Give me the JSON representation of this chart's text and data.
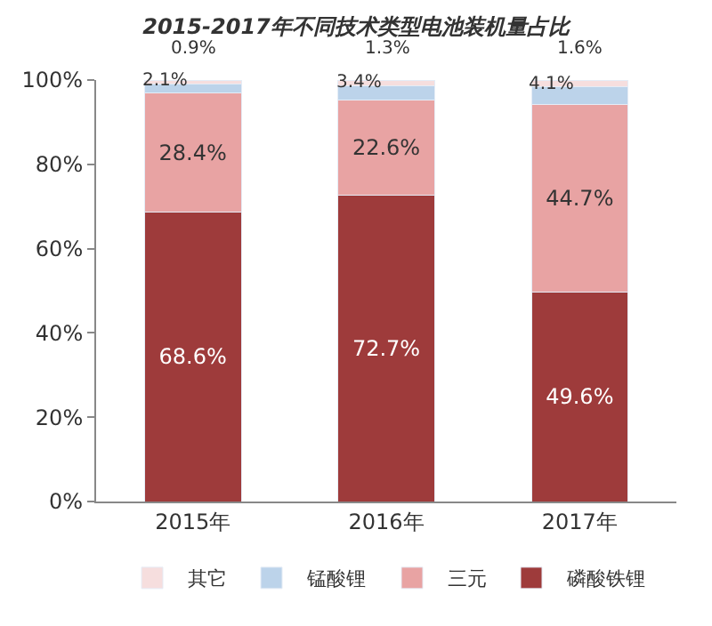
{
  "chart_data": {
    "type": "bar",
    "stacked": true,
    "title": "2015-2017年不同技术类型电池装机量占比",
    "categories": [
      "2015年",
      "2016年",
      "2017年"
    ],
    "series": [
      {
        "name": "磷酸铁锂",
        "color": "#9e3b3b",
        "values": [
          68.6,
          72.7,
          49.6
        ],
        "value_labels": [
          "68.6%",
          "72.7%",
          "49.6%"
        ]
      },
      {
        "name": "三元",
        "color": "#e8a3a3",
        "values": [
          28.4,
          22.6,
          44.7
        ],
        "value_labels": [
          "28.4%",
          "22.6%",
          "44.7%"
        ]
      },
      {
        "name": "锰酸锂",
        "color": "#bcd3ea",
        "values": [
          2.1,
          3.4,
          4.1
        ],
        "value_labels": [
          "2.1%",
          "3.4%",
          "4.1%"
        ]
      },
      {
        "name": "其它",
        "color": "#f6dede",
        "values": [
          0.9,
          1.3,
          1.6
        ],
        "value_labels": [
          "0.9%",
          "1.3%",
          "1.6%"
        ]
      }
    ],
    "ylim": [
      0,
      100
    ],
    "yticks": [
      {
        "value": 0,
        "label": "0%"
      },
      {
        "value": 20,
        "label": "20%"
      },
      {
        "value": 40,
        "label": "40%"
      },
      {
        "value": 60,
        "label": "60%"
      },
      {
        "value": 80,
        "label": "80%"
      },
      {
        "value": 100,
        "label": "100%"
      }
    ],
    "legend": "bottom"
  }
}
